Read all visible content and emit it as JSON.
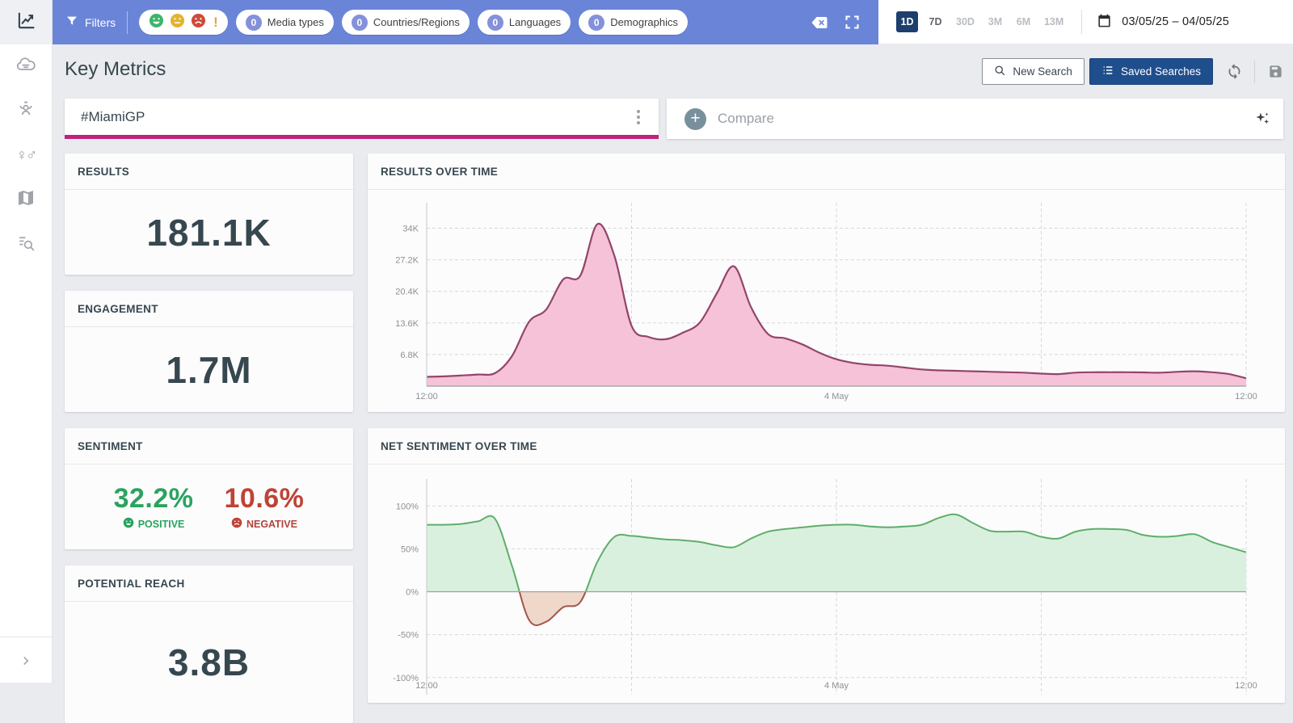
{
  "topbar": {
    "filters_label": "Filters",
    "sentiment_filter_icons": [
      "happy-face",
      "neutral-face",
      "angry-face",
      "exclamation"
    ],
    "exclamation": "!",
    "filter_pills": [
      {
        "count": "0",
        "label": "Media types"
      },
      {
        "count": "0",
        "label": "Countries/Regions"
      },
      {
        "count": "0",
        "label": "Languages"
      },
      {
        "count": "0",
        "label": "Demographics"
      }
    ],
    "time_ranges": [
      {
        "label": "1D",
        "state": "selected"
      },
      {
        "label": "7D",
        "state": "enabled"
      },
      {
        "label": "30D",
        "state": "disabled"
      },
      {
        "label": "3M",
        "state": "disabled"
      },
      {
        "label": "6M",
        "state": "disabled"
      },
      {
        "label": "13M",
        "state": "disabled"
      }
    ],
    "date_range": "03/05/25 – 04/05/25"
  },
  "header": {
    "title": "Key Metrics",
    "new_search_label": "New Search",
    "saved_searches_label": "Saved Searches"
  },
  "search": {
    "query": "#MiamiGP",
    "compare_placeholder": "Compare"
  },
  "metrics": {
    "results": {
      "label": "RESULTS",
      "value": "181.1K"
    },
    "engagement": {
      "label": "ENGAGEMENT",
      "value": "1.7M"
    },
    "sentiment": {
      "label": "SENTIMENT",
      "positive_value": "32.2%",
      "positive_label": "POSITIVE",
      "negative_value": "10.6%",
      "negative_label": "NEGATIVE"
    },
    "potential_reach": {
      "label": "POTENTIAL REACH",
      "value": "3.8B"
    }
  },
  "colors": {
    "topbar_blue": "#6a85d8",
    "accent_pink": "#c2217c",
    "navy_button": "#1f4e8d",
    "navy_chip": "#1d3f6e",
    "positive_green": "#2aa35f",
    "negative_red": "#bf4336",
    "value_text": "#37474f"
  },
  "chart_data": [
    {
      "type": "area",
      "title": "RESULTS OVER TIME",
      "x_description": "half-hourly from 3 May 12:00 to 4 May 12:00",
      "unit": "K",
      "values": [
        2.0,
        2.1,
        2.3,
        2.5,
        2.8,
        6.5,
        13.9,
        16.5,
        23.0,
        23.8,
        34.9,
        28.0,
        13.0,
        10.6,
        10.1,
        11.5,
        13.7,
        20.0,
        25.8,
        17.0,
        11.2,
        10.3,
        9.0,
        7.2,
        5.8,
        5.0,
        4.6,
        4.4,
        4.0,
        3.6,
        3.4,
        3.3,
        3.2,
        3.1,
        3.0,
        2.9,
        2.7,
        2.6,
        2.9,
        3.0,
        3.0,
        3.0,
        2.95,
        2.9,
        3.1,
        3.2,
        3.0,
        2.6,
        1.7
      ],
      "ylim": [
        0,
        37.4
      ],
      "yticks": [
        {
          "v": 6.8,
          "label": "6.8K"
        },
        {
          "v": 13.6,
          "label": "13.6K"
        },
        {
          "v": 20.4,
          "label": "20.4K"
        },
        {
          "v": 27.2,
          "label": "27.2K"
        },
        {
          "v": 34,
          "label": "34K"
        }
      ],
      "x_gridlines": [
        0,
        0.25,
        0.5,
        0.75,
        1
      ],
      "x_ticks": [
        {
          "pos": 0,
          "label": "12:00"
        },
        {
          "pos": 0.5,
          "label": "4 May"
        },
        {
          "pos": 1,
          "label": "12:00"
        }
      ],
      "stroke": "#93456a",
      "fill": "#f6c2d8"
    },
    {
      "type": "area",
      "title": "NET SENTIMENT OVER TIME",
      "x_description": "half-hourly from 3 May 12:00 to 4 May 12:00",
      "unit": "%",
      "values": [
        78,
        78,
        79,
        82,
        85,
        30,
        -33,
        -35,
        -18,
        -12,
        35,
        64,
        65,
        63,
        61,
        60,
        58,
        54,
        52,
        62,
        70,
        73,
        75,
        77,
        78,
        78,
        76,
        75,
        76,
        78,
        86,
        90,
        80,
        71,
        70,
        70,
        64,
        62,
        70,
        73,
        73,
        72,
        66,
        64,
        65,
        67,
        58,
        52,
        46
      ],
      "ylim": [
        -120,
        120
      ],
      "yticks": [
        {
          "v": 100,
          "label": "100%"
        },
        {
          "v": 50,
          "label": "50%"
        },
        {
          "v": 0,
          "label": "0%"
        },
        {
          "v": -50,
          "label": "-50%"
        },
        {
          "v": -100,
          "label": "-100%"
        }
      ],
      "x_gridlines": [
        0,
        0.25,
        0.5,
        0.75,
        1
      ],
      "x_ticks": [
        {
          "pos": 0,
          "label": "12:00"
        },
        {
          "pos": 0.5,
          "label": "4 May"
        },
        {
          "pos": 1,
          "label": "12:00"
        }
      ],
      "positive": {
        "stroke": "#5fae6b",
        "fill": "#daf0de"
      },
      "negative": {
        "stroke": "#a0564a",
        "fill": "#efd7ca"
      }
    }
  ]
}
